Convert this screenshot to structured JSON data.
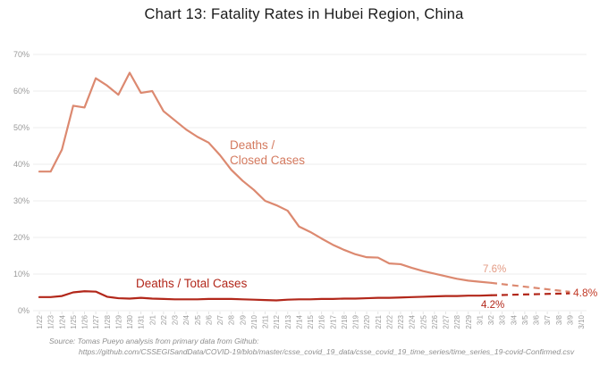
{
  "title": "Chart 13: Fatality Rates in Hubei Region, China",
  "source_line1": "Source: Tomas Pueyo analysis from primary data from Github:",
  "source_line2": "https://github.com/CSSEGISandData/COVID-19/blob/master/csse_covid_19_data/csse_covid_19_time_series/time_series_19-covid-Confirmed.csv",
  "colors": {
    "closed_series": "#dc8970",
    "total_series": "#b2271a",
    "closed_end_label": "#e39b84",
    "converged_label": "#c23b28",
    "grid": "#ececec",
    "axis_text": "#9a9a9a"
  },
  "chart_data": {
    "type": "line",
    "title": "Chart 13: Fatality Rates in Hubei Region, China",
    "xlabel": "",
    "ylabel": "",
    "ylim": [
      0,
      70
    ],
    "grid": true,
    "legend_position": "inline-annotations",
    "y_ticks": [
      "0%",
      "10%",
      "20%",
      "30%",
      "40%",
      "50%",
      "60%",
      "70%"
    ],
    "x": [
      "1/22",
      "1/23",
      "1/24",
      "1/25",
      "1/26",
      "1/27",
      "1/28",
      "1/29",
      "1/30",
      "1/31",
      "2/1",
      "2/2",
      "2/3",
      "2/4",
      "2/5",
      "2/6",
      "2/7",
      "2/8",
      "2/9",
      "2/10",
      "2/11",
      "2/12",
      "2/13",
      "2/14",
      "2/15",
      "2/16",
      "2/17",
      "2/18",
      "2/19",
      "2/20",
      "2/21",
      "2/22",
      "2/23",
      "2/24",
      "2/25",
      "2/26",
      "2/27",
      "2/28",
      "2/29",
      "3/1",
      "3/2",
      "3/3",
      "3/4",
      "3/5",
      "3/6",
      "3/7",
      "3/8",
      "3/9",
      "3/10"
    ],
    "series": [
      {
        "name": "Deaths / Closed Cases",
        "color": "#dc8970",
        "style": "solid",
        "x_range": [
          "1/22",
          "3/2"
        ],
        "values": [
          38,
          38,
          44,
          56,
          55.5,
          63.5,
          61.5,
          59,
          65,
          59.5,
          60,
          54.5,
          52,
          49.5,
          47.5,
          45.9,
          42.5,
          38.5,
          35.5,
          33,
          30,
          28.8,
          27.3,
          23,
          21.5,
          19.7,
          18,
          16.6,
          15.4,
          14.6,
          14.5,
          12.9,
          12.7,
          11.7,
          10.8,
          10.1,
          9.4,
          8.7,
          8.2,
          7.9,
          7.6
        ]
      },
      {
        "name": "Deaths / Total Cases",
        "color": "#b2271a",
        "style": "solid",
        "x_range": [
          "1/22",
          "3/2"
        ],
        "values": [
          3.7,
          3.7,
          4.0,
          5.0,
          5.3,
          5.2,
          3.8,
          3.4,
          3.3,
          3.5,
          3.3,
          3.2,
          3.1,
          3.1,
          3.1,
          3.2,
          3.2,
          3.2,
          3.1,
          3.0,
          2.9,
          2.8,
          3.0,
          3.1,
          3.1,
          3.2,
          3.2,
          3.3,
          3.3,
          3.4,
          3.5,
          3.5,
          3.6,
          3.7,
          3.8,
          3.9,
          4.0,
          4.0,
          4.1,
          4.1,
          4.2
        ]
      },
      {
        "name": "Deaths / Closed Cases (projection)",
        "color": "#dc8970",
        "style": "dashed",
        "x_range": [
          "3/2",
          "3/10"
        ],
        "from_value": 7.6,
        "to_value": 4.8
      },
      {
        "name": "Deaths / Total Cases (projection)",
        "color": "#b2271a",
        "style": "dashed",
        "x_range": [
          "3/2",
          "3/10"
        ],
        "from_value": 4.2,
        "to_value": 4.8
      }
    ],
    "annotations": {
      "closed_label_line1": "Deaths /",
      "closed_label_line2": "Closed Cases",
      "total_label": "Deaths / Total Cases",
      "closed_end_value": "7.6%",
      "total_end_value": "4.2%",
      "converged_value": "4.8%"
    }
  }
}
